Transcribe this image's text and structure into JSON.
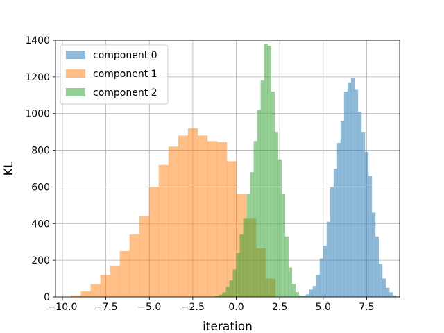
{
  "chart_data": {
    "type": "histogram",
    "title": "",
    "xlabel": "iteration",
    "ylabel": "KL",
    "xlim": [
      -10.4,
      9.4
    ],
    "ylim": [
      0,
      1400
    ],
    "xticks": [
      -10.0,
      -7.5,
      -5.0,
      -2.5,
      0.0,
      2.5,
      5.0,
      7.5
    ],
    "xtick_labels": [
      "−10.0",
      "−7.5",
      "−5.0",
      "−2.5",
      "0.0",
      "2.5",
      "5.0",
      "7.5"
    ],
    "yticks": [
      0,
      200,
      400,
      600,
      800,
      1000,
      1200,
      1400
    ],
    "ytick_labels": [
      "0",
      "200",
      "400",
      "600",
      "800",
      "1000",
      "1200",
      "1400"
    ],
    "grid": true,
    "legend_position": "top-left",
    "series": [
      {
        "name": "component 0",
        "color": "#1f77b4",
        "opacity": 0.5,
        "bin_start": 3.8,
        "bin_width": 0.2,
        "counts": [
          6,
          14,
          40,
          60,
          120,
          210,
          280,
          410,
          600,
          700,
          840,
          960,
          1120,
          1170,
          1195,
          1130,
          1010,
          900,
          790,
          660,
          460,
          330,
          180,
          100,
          50,
          25,
          8,
          3
        ]
      },
      {
        "name": "component 1",
        "color": "#ff7f0e",
        "opacity": 0.5,
        "bin_start": -9.5,
        "bin_width": 0.56,
        "counts": [
          8,
          30,
          70,
          120,
          170,
          250,
          340,
          440,
          600,
          720,
          820,
          880,
          920,
          880,
          850,
          845,
          740,
          560,
          430,
          265,
          100
        ]
      },
      {
        "name": "component 2",
        "color": "#2ca02c",
        "opacity": 0.5,
        "bin_start": -1.6,
        "bin_width": 0.2,
        "counts": [
          1,
          2,
          5,
          12,
          25,
          55,
          90,
          150,
          240,
          340,
          430,
          560,
          680,
          850,
          1020,
          1180,
          1380,
          1370,
          1120,
          900,
          750,
          560,
          330,
          160,
          70,
          26,
          8,
          3,
          1
        ]
      }
    ]
  }
}
